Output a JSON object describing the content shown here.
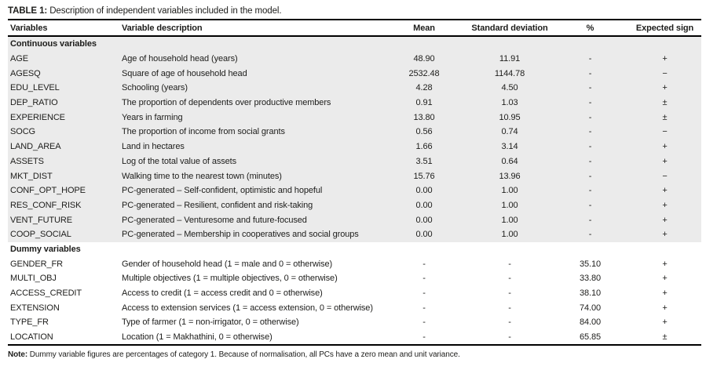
{
  "page": {
    "title_label": "TABLE 1:",
    "title_text": "Description of independent variables included in the model.",
    "note_label": "Note:",
    "note_text": "Dummy variable figures are percentages of category 1. Because of normalisation, all PCs have a zero mean and unit variance."
  },
  "table": {
    "columns": [
      "Variables",
      "Variable description",
      "Mean",
      "Standard deviation",
      "%",
      "Expected sign"
    ],
    "sections": [
      {
        "header": "Continuous variables",
        "shaded": true,
        "rows": [
          [
            "AGE",
            "Age of household head (years)",
            "48.90",
            "11.91",
            "-",
            "+"
          ],
          [
            "AGESQ",
            "Square of age of household head",
            "2532.48",
            "1144.78",
            "-",
            "−"
          ],
          [
            "EDU_LEVEL",
            "Schooling (years)",
            "4.28",
            "4.50",
            "-",
            "+"
          ],
          [
            "DEP_RATIO",
            "The proportion of dependents over productive members",
            "0.91",
            "1.03",
            "-",
            "±"
          ],
          [
            "EXPERIENCE",
            "Years in farming",
            "13.80",
            "10.95",
            "-",
            "±"
          ],
          [
            "SOCG",
            "The proportion of income from social grants",
            "0.56",
            "0.74",
            "-",
            "−"
          ],
          [
            "LAND_AREA",
            "Land in hectares",
            "1.66",
            "3.14",
            "-",
            "+"
          ],
          [
            "ASSETS",
            "Log of the total value of assets",
            "3.51",
            "0.64",
            "-",
            "+"
          ],
          [
            "MKT_DIST",
            "Walking time to the nearest town (minutes)",
            "15.76",
            "13.96",
            "-",
            "−"
          ],
          [
            "CONF_OPT_HOPE",
            "PC-generated – Self-confident, optimistic and hopeful",
            "0.00",
            "1.00",
            "-",
            "+"
          ],
          [
            "RES_CONF_RISK",
            "PC-generated – Resilient, confident and risk-taking",
            "0.00",
            "1.00",
            "-",
            "+"
          ],
          [
            "VENT_FUTURE",
            "PC-generated – Venturesome and future-focused",
            "0.00",
            "1.00",
            "-",
            "+"
          ],
          [
            "COOP_SOCIAL",
            "PC-generated – Membership in cooperatives and social groups",
            "0.00",
            "1.00",
            "-",
            "+"
          ]
        ]
      },
      {
        "header": "Dummy variables",
        "shaded": false,
        "rows": [
          [
            "GENDER_FR",
            "Gender of household head (1 = male and 0 = otherwise)",
            "-",
            "-",
            "35.10",
            "+"
          ],
          [
            "MULTI_OBJ",
            "Multiple objectives (1 = multiple objectives, 0 = otherwise)",
            "-",
            "-",
            "33.80",
            "+"
          ],
          [
            "ACCESS_CREDIT",
            "Access to credit (1 = access credit and 0 = otherwise)",
            "-",
            "-",
            "38.10",
            "+"
          ],
          [
            "EXTENSION",
            "Access to extension services (1 = access extension, 0 = otherwise)",
            "-",
            "-",
            "74.00",
            "+"
          ],
          [
            "TYPE_FR",
            "Type of farmer (1 = non-irrigator, 0 = otherwise)",
            "-",
            "-",
            "84.00",
            "+"
          ],
          [
            "LOCATION",
            "Location (1 = Makhathini, 0 = otherwise)",
            "-",
            "-",
            "65.85",
            "±"
          ]
        ]
      }
    ]
  },
  "colors": {
    "section_shade": "#ebebeb",
    "border": "#000000",
    "text": "#1d1d1b"
  }
}
